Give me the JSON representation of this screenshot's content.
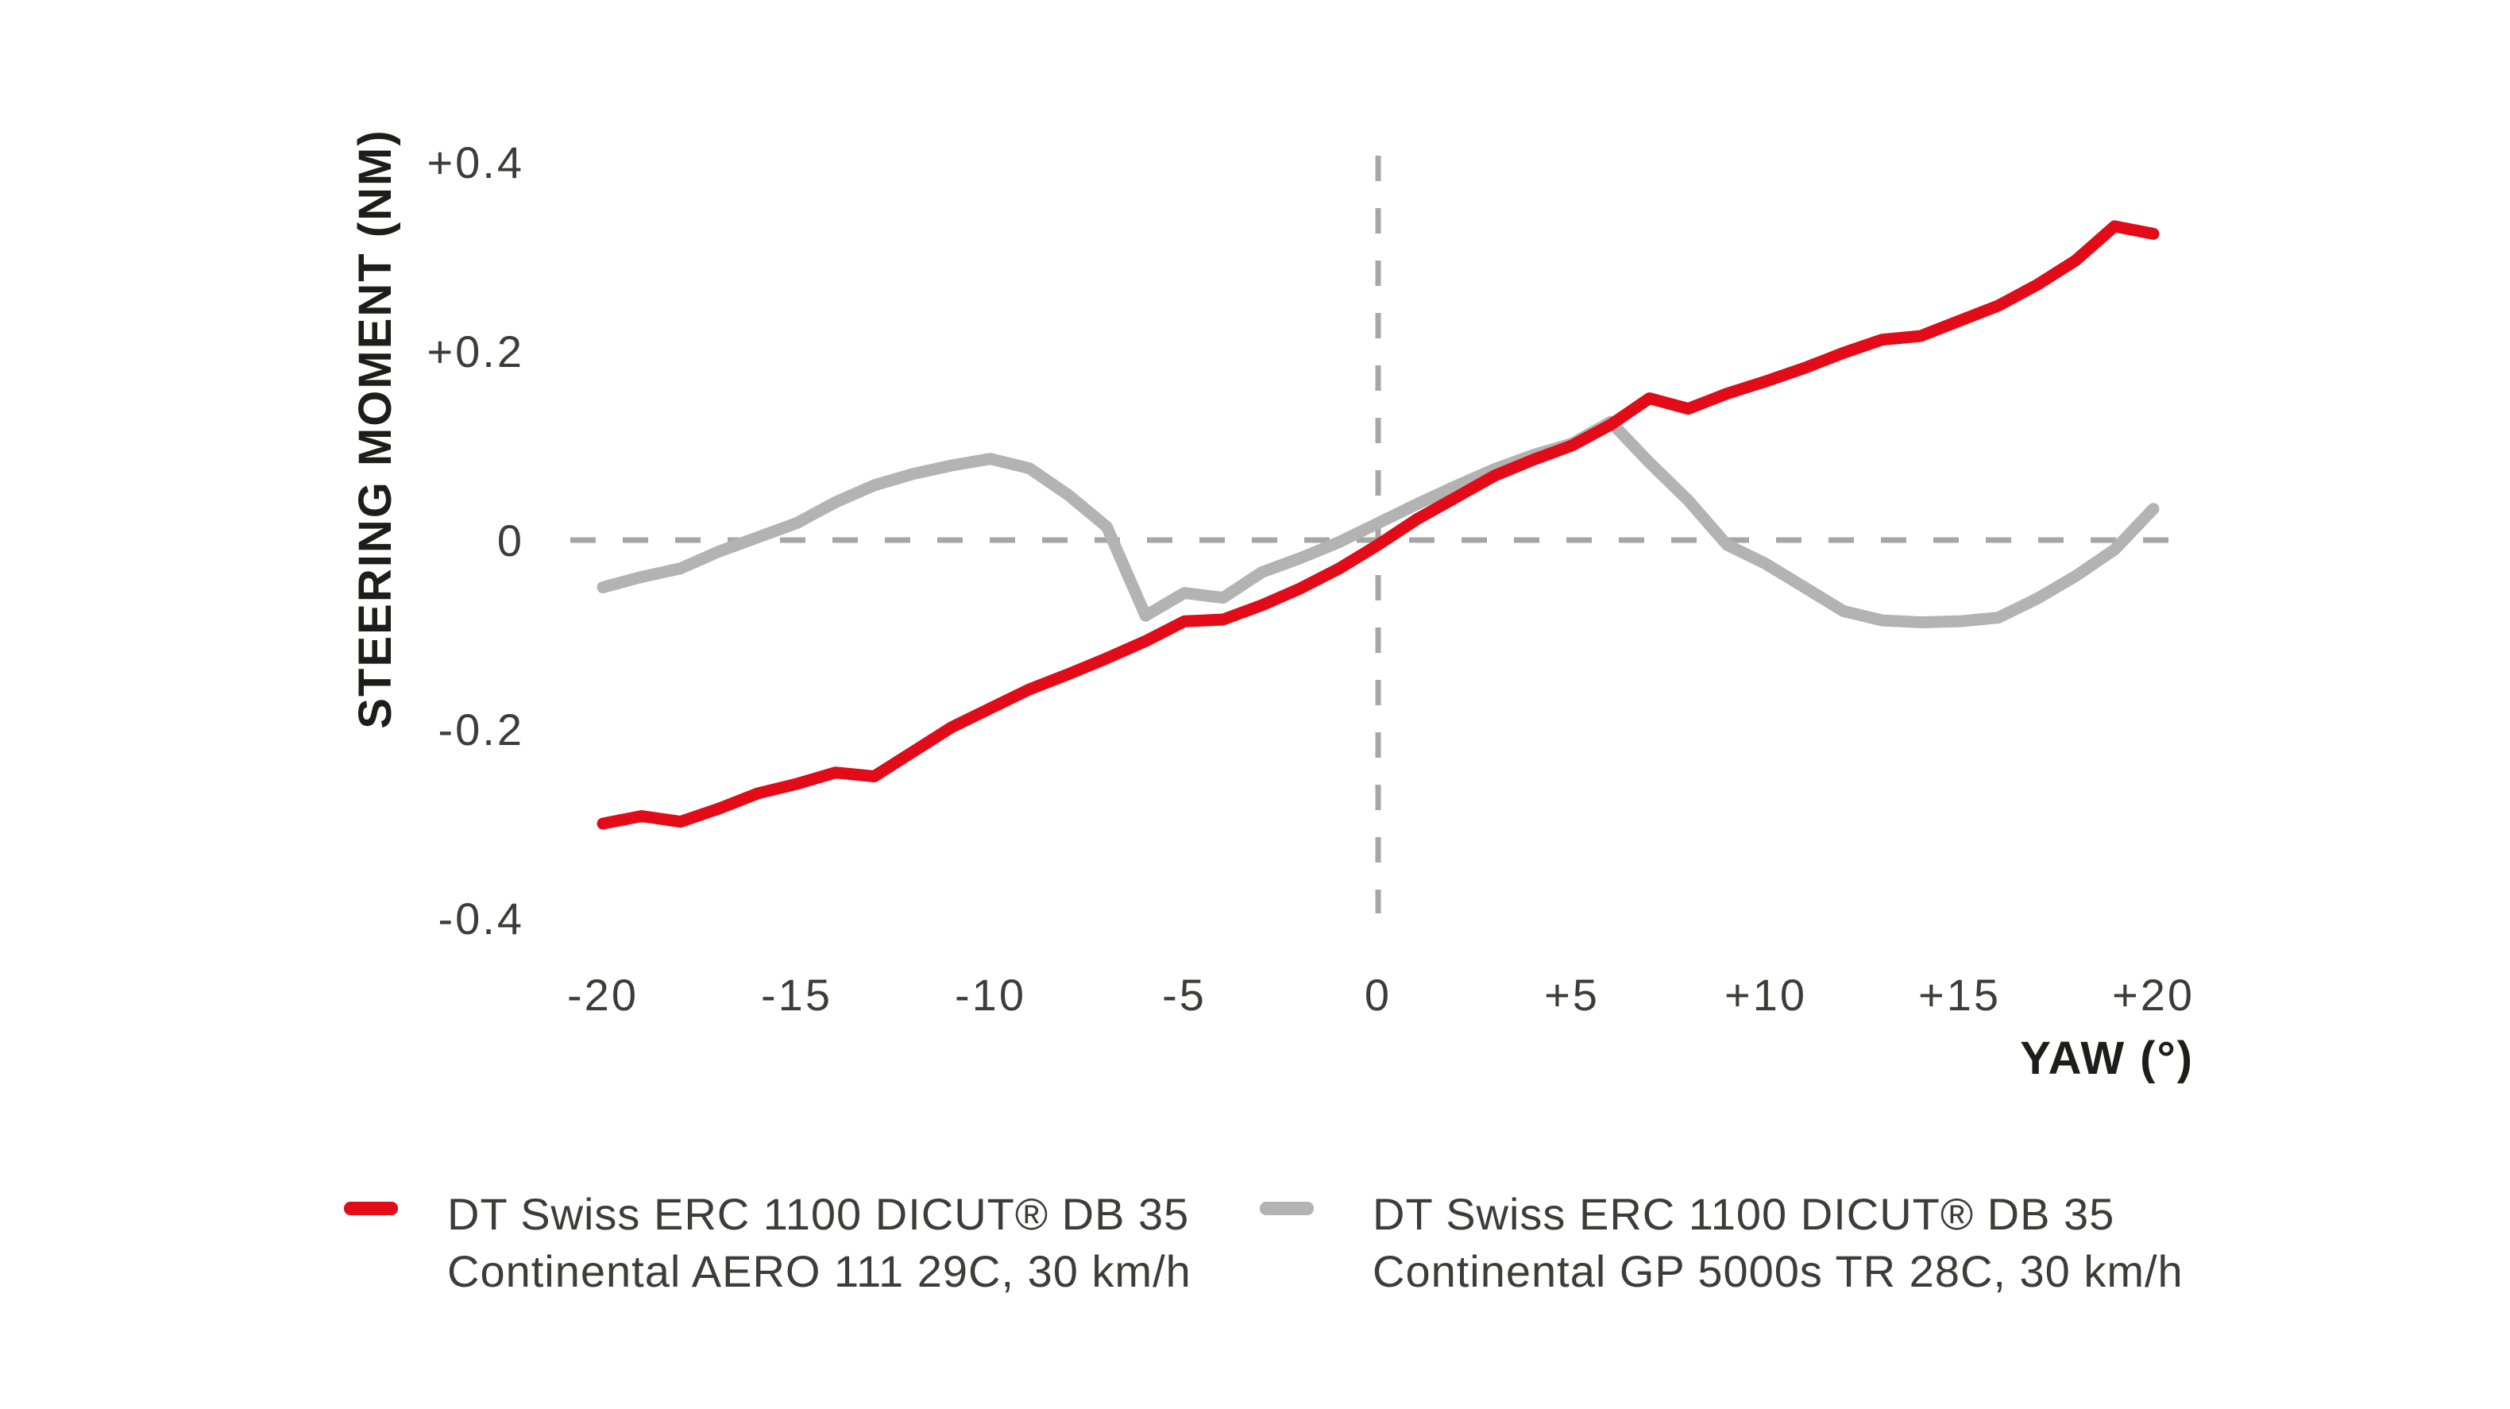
{
  "page": {
    "background": "#ffffff"
  },
  "colors": {
    "dashed_zero_line": "#a6a6a6",
    "tick_text": "#3c3c3b",
    "axis_title_text": "#1d1d1b",
    "legend_text": "#3c3c3b",
    "series_red": "#e30b17",
    "series_gray": "#b3b3b3"
  },
  "chart_data": {
    "type": "line",
    "title": "",
    "xlabel": "YAW (°)",
    "ylabel": "STEERING MOMENT (NM)",
    "xlim": [
      -20,
      20
    ],
    "ylim": [
      -0.4,
      0.4
    ],
    "grid": "no grid; dashed zero reference lines at x=0 and y=0",
    "legend_position": "bottom",
    "x_ticks": {
      "values": [
        -20,
        -15,
        -10,
        -5,
        0,
        5,
        10,
        15,
        20
      ],
      "labels": [
        "-20",
        "-15",
        "-10",
        "-5",
        "0",
        "+5",
        "+10",
        "+15",
        "+20"
      ]
    },
    "y_ticks": {
      "values": [
        0.4,
        0.2,
        0,
        -0.2,
        -0.4
      ],
      "labels": [
        "+0.4",
        "+0.2",
        "0",
        "-0.2",
        "-0.4"
      ]
    },
    "x": [
      -20,
      -19,
      -18,
      -17,
      -16,
      -15,
      -14,
      -13,
      -12,
      -11,
      -10,
      -9,
      -8,
      -7,
      -6,
      -5,
      -4,
      -3,
      -2,
      -1,
      0,
      1,
      2,
      3,
      4,
      5,
      6,
      7,
      8,
      9,
      10,
      11,
      12,
      13,
      14,
      15,
      16,
      17,
      18,
      19,
      20
    ],
    "series": [
      {
        "name": "DT Swiss ERC 1100 DICUT® DB 35 / Continental AERO 111 29C, 30 km/h",
        "color": "#e30b17",
        "values": [
          -0.3,
          -0.292,
          -0.298,
          -0.284,
          -0.268,
          -0.258,
          -0.246,
          -0.25,
          -0.224,
          -0.198,
          -0.178,
          -0.158,
          -0.142,
          -0.125,
          -0.107,
          -0.086,
          -0.084,
          -0.069,
          -0.051,
          -0.03,
          -0.005,
          0.022,
          0.045,
          0.068,
          0.085,
          0.1,
          0.122,
          0.15,
          0.139,
          0.155,
          0.168,
          0.182,
          0.198,
          0.212,
          0.216,
          0.232,
          0.248,
          0.27,
          0.296,
          0.332,
          0.324
        ]
      },
      {
        "name": "DT Swiss ERC 1100 DICUT® DB 35 / Continental GP 5000s TR 28C, 30 km/h",
        "color": "#b3b3b3",
        "values": [
          -0.05,
          -0.039,
          -0.03,
          -0.012,
          0.003,
          0.018,
          0.04,
          0.058,
          0.07,
          0.079,
          0.086,
          0.076,
          0.048,
          0.014,
          -0.08,
          -0.056,
          -0.061,
          -0.034,
          -0.019,
          -0.002,
          0.018,
          0.038,
          0.057,
          0.075,
          0.09,
          0.102,
          0.125,
          0.082,
          0.042,
          -0.005,
          -0.025,
          -0.05,
          -0.075,
          -0.085,
          -0.087,
          -0.086,
          -0.082,
          -0.062,
          -0.038,
          -0.01,
          0.033
        ]
      }
    ]
  },
  "legend": {
    "items": [
      {
        "line1": "DT Swiss ERC 1100 DICUT® DB 35",
        "line2": "Continental AERO 111 29C, 30 km/h",
        "swatch_color": "#e30b17"
      },
      {
        "line1": "DT Swiss ERC 1100 DICUT® DB 35",
        "line2": "Continental GP 5000s TR 28C, 30 km/h",
        "swatch_color": "#b3b3b3"
      }
    ]
  }
}
